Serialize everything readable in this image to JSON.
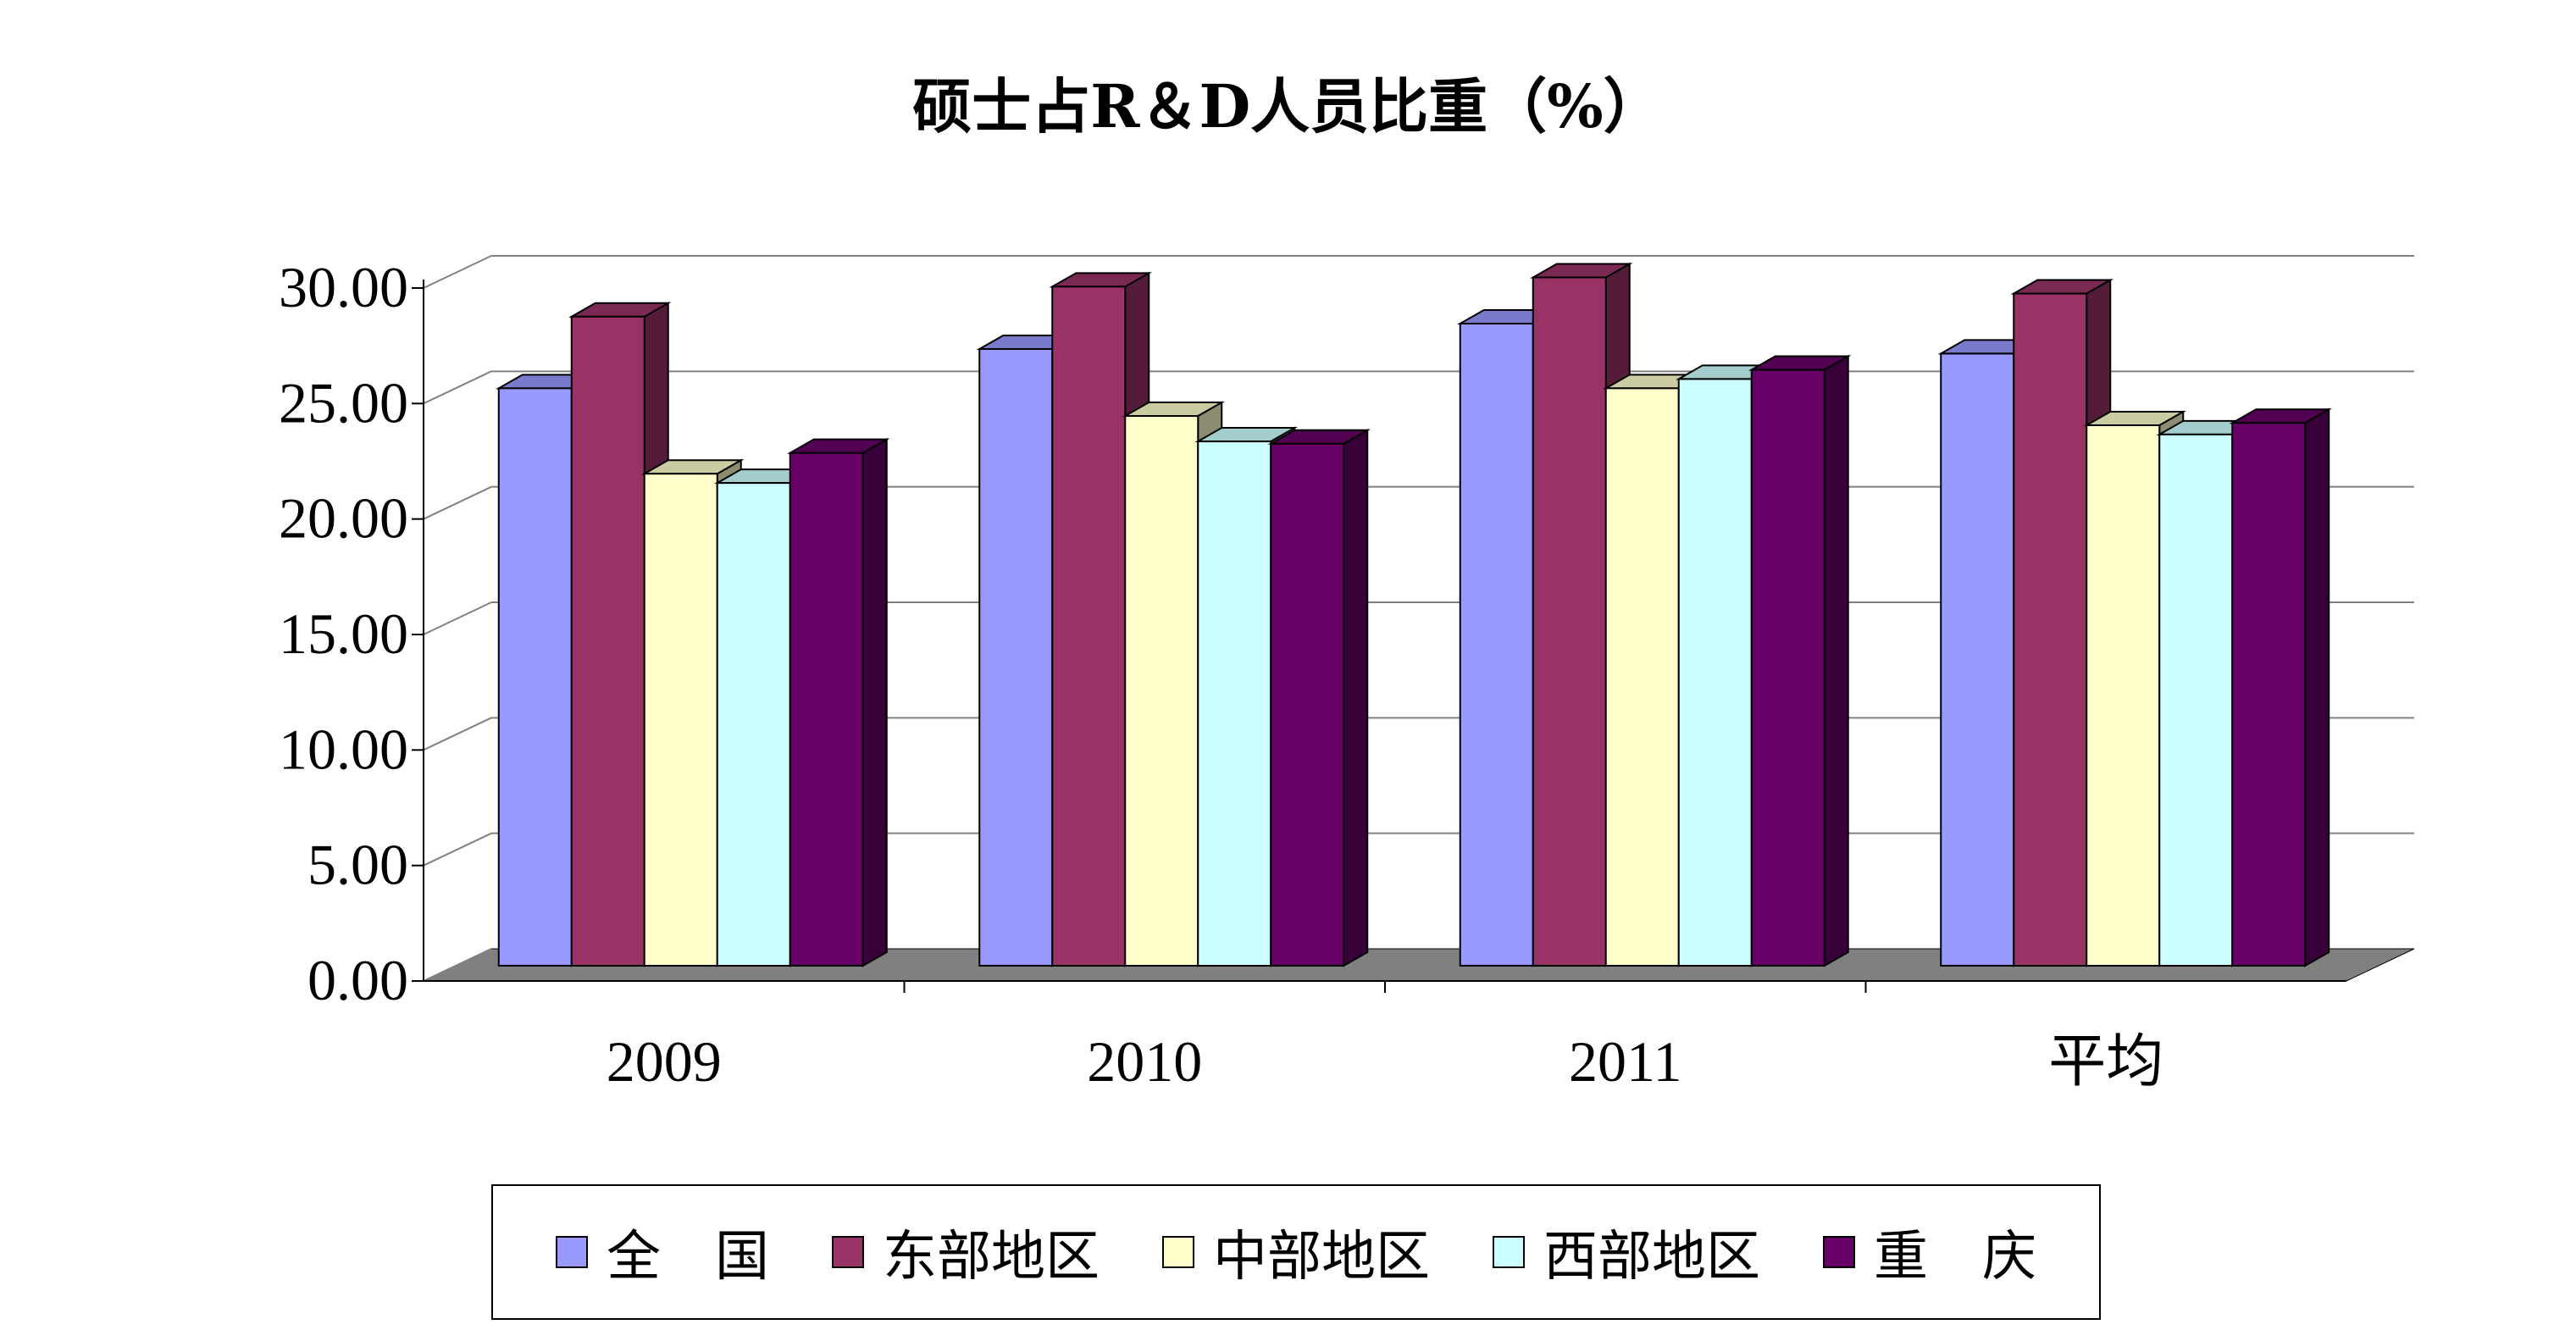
{
  "chart_data": {
    "type": "bar",
    "style": "3d-clustered-column",
    "title": "硕士占R＆D人员比重（%）",
    "categories": [
      "2009",
      "2010",
      "2011",
      "平均"
    ],
    "series": [
      {
        "name": "全　国",
        "color": "#9999FF",
        "values": [
          25.0,
          26.7,
          27.8,
          26.5
        ]
      },
      {
        "name": "东部地区",
        "color": "#993366",
        "values": [
          28.1,
          29.4,
          29.8,
          29.1
        ]
      },
      {
        "name": "中部地区",
        "color": "#FFFFCC",
        "values": [
          21.3,
          23.8,
          25.0,
          23.4
        ]
      },
      {
        "name": "西部地区",
        "color": "#CCFFFF",
        "values": [
          20.9,
          22.7,
          25.4,
          23.0
        ]
      },
      {
        "name": "重　庆",
        "color": "#660066",
        "values": [
          22.2,
          22.6,
          25.8,
          23.5
        ]
      }
    ],
    "ylim": [
      0,
      30
    ],
    "yticks": [
      "0.00",
      "5.00",
      "10.00",
      "15.00",
      "20.00",
      "25.00",
      "30.00"
    ],
    "xlabel": "",
    "ylabel": "",
    "grid": true,
    "legend_position": "bottom"
  }
}
